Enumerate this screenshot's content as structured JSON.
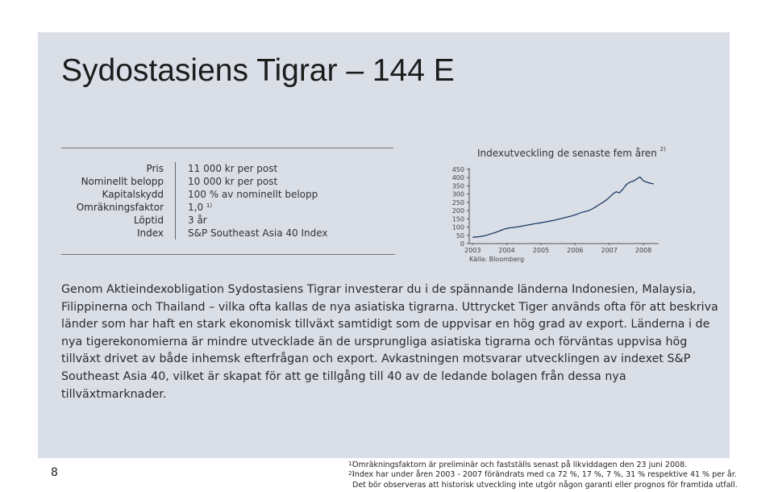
{
  "title": "Sydostasiens Tigrar – 144 E",
  "facts": [
    {
      "label": "Pris",
      "value": "11 000 kr per post",
      "sup": ""
    },
    {
      "label": "Nominellt belopp",
      "value": "10 000 kr per post",
      "sup": ""
    },
    {
      "label": "Kapitalskydd",
      "value": "100 % av nominellt belopp",
      "sup": ""
    },
    {
      "label": "Omräkningsfaktor",
      "value": "1,0",
      "sup": "1)"
    },
    {
      "label": "Löptid",
      "value": "3 år",
      "sup": ""
    },
    {
      "label": "Index",
      "value": "S&P Southeast Asia 40 Index",
      "sup": ""
    }
  ],
  "chart": {
    "title": "Indexutveckling de senaste fem åren",
    "title_sup": "2)",
    "source": "Källa: Bloomberg",
    "line_color": "#1f3d66"
  },
  "chart_data": {
    "type": "line",
    "title": "Indexutveckling de senaste fem åren",
    "xlabel": "",
    "ylabel": "",
    "ylim": [
      0,
      450
    ],
    "yticks": [
      450,
      400,
      350,
      300,
      250,
      200,
      150,
      100,
      50,
      0
    ],
    "xticks": [
      "2003",
      "2004",
      "2005",
      "2006",
      "2007",
      "2008"
    ],
    "xlim": [
      2002.9,
      2008.4
    ],
    "grid": false,
    "series": [
      {
        "x": [
          2003.0,
          2003.1,
          2003.2,
          2003.3,
          2003.4,
          2003.5,
          2003.6,
          2003.7,
          2003.8,
          2003.9,
          2004.0,
          2004.1,
          2004.2,
          2004.3,
          2004.4,
          2004.5,
          2004.6,
          2004.7,
          2004.8,
          2004.9,
          2005.0,
          2005.1,
          2005.2,
          2005.3,
          2005.4,
          2005.5,
          2005.6,
          2005.7,
          2005.8,
          2005.9,
          2006.0,
          2006.1,
          2006.2,
          2006.3,
          2006.4,
          2006.5,
          2006.6,
          2006.7,
          2006.8,
          2006.9,
          2007.0,
          2007.1,
          2007.2,
          2007.3,
          2007.4,
          2007.5,
          2007.6,
          2007.7,
          2007.8,
          2007.9,
          2008.0,
          2008.1,
          2008.2,
          2008.3
        ],
        "values": [
          38,
          40,
          42,
          45,
          50,
          57,
          63,
          70,
          78,
          86,
          92,
          96,
          98,
          101,
          104,
          108,
          112,
          116,
          120,
          123,
          126,
          130,
          134,
          138,
          142,
          147,
          152,
          158,
          163,
          168,
          174,
          182,
          190,
          194,
          200,
          210,
          222,
          236,
          248,
          262,
          280,
          300,
          314,
          308,
          330,
          358,
          372,
          378,
          392,
          404,
          380,
          372,
          366,
          362
        ]
      }
    ]
  },
  "body": "Genom Aktieindexobligation Sydostasiens Tigrar investerar du i de spännande länderna Indonesien, Malaysia, Filippinerna och Thailand – vilka ofta kallas de nya asiatiska tigrarna. Uttrycket Tiger används ofta för att beskriva länder som har haft en stark ekonomisk tillväxt samtidigt som de uppvisar en hög grad av export. Länderna i de nya tigerekonomierna är mindre utvecklade än de ursprungliga asiatiska tigrarna och förväntas uppvisa hög tillväxt drivet av både inhemsk efterfrågan och export. Avkastningen motsvarar utvecklingen av indexet S&P Southeast Asia 40, vilket är skapat för att ge tillgång till 40 av de ledande bolagen från dessa nya tillväxtmarknader.",
  "page_number": "8",
  "footnotes": [
    {
      "mark": "1)",
      "text": "Omräkningsfaktorn är preliminär och fastställs senast på likviddagen den 23 juni 2008."
    },
    {
      "mark": "2)",
      "text": "Index har under åren 2003 - 2007 förändrats med ca 72 %, 17 %, 7 %, 31 % respektive 41 % per år."
    },
    {
      "mark": "",
      "text": "Det bör observeras att historisk utveckling inte utgör någon garanti eller prognos för framtida utfall."
    }
  ]
}
